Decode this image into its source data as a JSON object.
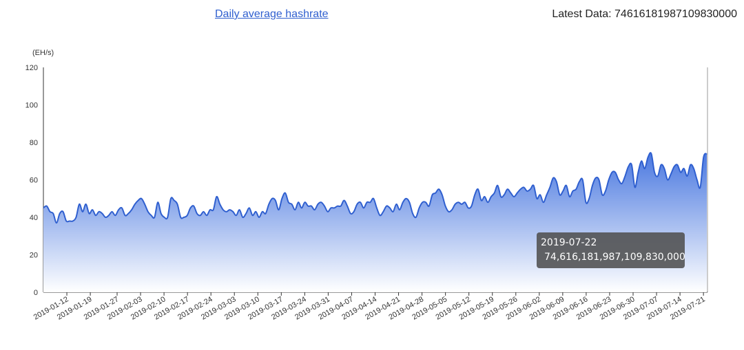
{
  "header": {
    "title": "Daily average hashrate",
    "latest_label": "Latest Data: ",
    "latest_value": "74616181987109830000"
  },
  "tooltip": {
    "date": "2019-07-22",
    "value": "74,616,181,987,109,830,000"
  },
  "colors": {
    "line": "#2f5fcf",
    "area_top": "#4a78e0",
    "area_bottom": "#ffffff",
    "axis": "#333333"
  },
  "chart_data": {
    "type": "area",
    "title": "Daily average hashrate",
    "ylabel": "(EH/s)",
    "ylim": [
      0,
      120
    ],
    "yticks": [
      0,
      20,
      40,
      60,
      80,
      100,
      120
    ],
    "xlim": [
      "2019-01-05",
      "2019-07-22"
    ],
    "xtick_labels": [
      "2019-01-12",
      "2019-01-19",
      "2019-01-27",
      "2019-02-03",
      "2019-02-10",
      "2019-02-17",
      "2019-02-24",
      "2019-03-03",
      "2019-03-10",
      "2019-03-17",
      "2019-03-24",
      "2019-03-31",
      "2019-04-07",
      "2019-04-14",
      "2019-04-21",
      "2019-04-28",
      "2019-05-05",
      "2019-05-12",
      "2019-05-19",
      "2019-05-26",
      "2019-06-02",
      "2019-06-09",
      "2019-06-16",
      "2019-06-23",
      "2019-06-30",
      "2019-07-07",
      "2019-07-14",
      "2019-07-21"
    ],
    "series": [
      {
        "values": [
          45,
          46,
          43,
          42,
          37,
          42,
          43,
          38,
          38,
          38,
          40,
          47,
          43,
          47,
          42,
          44,
          41,
          43,
          42,
          40,
          41,
          43,
          41,
          44,
          45,
          41,
          42,
          44,
          47,
          49,
          50,
          47,
          43,
          41,
          40,
          48,
          42,
          40,
          40,
          50,
          49,
          47,
          40,
          40,
          41,
          45,
          46,
          42,
          41,
          43,
          41,
          44,
          44,
          51,
          47,
          44,
          43,
          44,
          43,
          41,
          44,
          40,
          42,
          45,
          41,
          43,
          40,
          43,
          42,
          47,
          50,
          49,
          44,
          50,
          53,
          48,
          47,
          44,
          48,
          45,
          48,
          46,
          46,
          44,
          47,
          48,
          46,
          43,
          45,
          45,
          46,
          46,
          49,
          46,
          42,
          43,
          47,
          48,
          45,
          48,
          48,
          50,
          45,
          41,
          43,
          46,
          45,
          43,
          47,
          44,
          48,
          50,
          48,
          42,
          40,
          45,
          48,
          48,
          46,
          52,
          53,
          55,
          52,
          46,
          43,
          44,
          47,
          48,
          47,
          48,
          45,
          46,
          52,
          55,
          49,
          51,
          48,
          51,
          53,
          57,
          51,
          52,
          55,
          53,
          51,
          53,
          55,
          56,
          54,
          55,
          57,
          50,
          52,
          48,
          52,
          56,
          61,
          59,
          52,
          54,
          57,
          51,
          54,
          55,
          59,
          60,
          48,
          50,
          57,
          61,
          60,
          52,
          54,
          60,
          64,
          64,
          60,
          58,
          62,
          67,
          68,
          56,
          64,
          70,
          66,
          72,
          74,
          64,
          62,
          68,
          66,
          60,
          63,
          67,
          68,
          64,
          66,
          62,
          68,
          66,
          60,
          56,
          72,
          74
        ]
      }
    ]
  }
}
